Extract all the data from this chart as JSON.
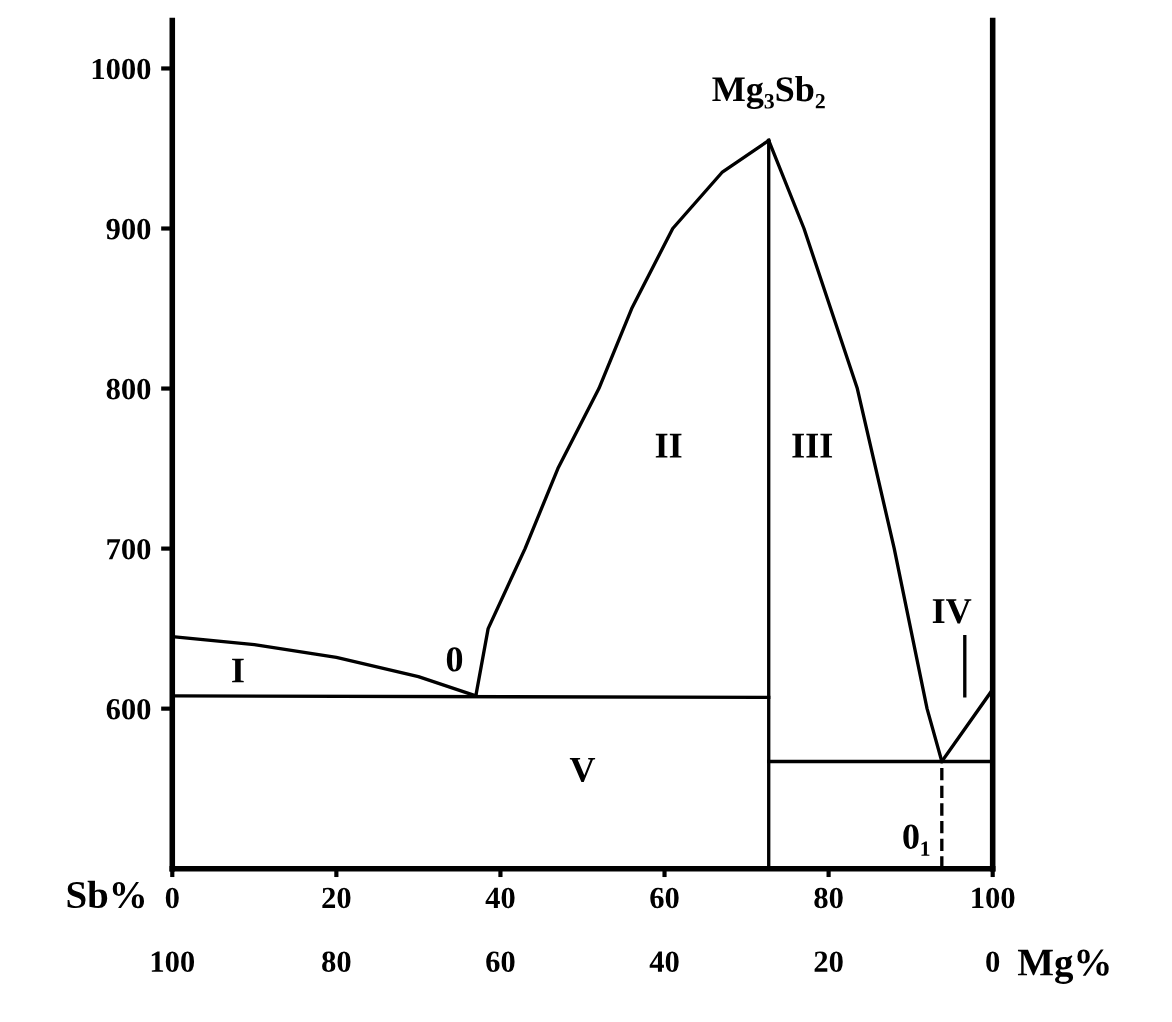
{
  "chart_data": {
    "type": "line",
    "xlabel": "Sb%",
    "x2label": "Mg%",
    "xlim": [
      0,
      100
    ],
    "xticks": [
      0,
      20,
      40,
      60,
      80,
      100
    ],
    "x2lim": [
      100,
      0
    ],
    "x2ticks": [
      100,
      80,
      60,
      40,
      20,
      0
    ],
    "ylim": [
      500,
      1030
    ],
    "yticks": [
      600,
      700,
      800,
      900,
      1000
    ],
    "grid": false,
    "legend": false,
    "marker": "none",
    "series": [
      {
        "color": "#000000",
        "x": [
          0,
          10,
          20,
          30,
          37
        ],
        "values": [
          645,
          640,
          632,
          620,
          608
        ]
      },
      {
        "color": "#000000",
        "x": [
          0,
          72.7
        ],
        "values": [
          608,
          607
        ]
      },
      {
        "color": "#000000",
        "x": [
          37,
          38.5,
          43,
          47,
          52,
          56,
          61,
          67,
          72.7
        ],
        "values": [
          608,
          650,
          700,
          750,
          800,
          850,
          900,
          935,
          955
        ]
      },
      {
        "color": "#000000",
        "x": [
          72.7,
          72.7
        ],
        "values": [
          500,
          955
        ]
      },
      {
        "color": "#000000",
        "x": [
          72.7,
          77,
          83.5,
          88,
          92,
          93.8
        ],
        "values": [
          955,
          900,
          800,
          700,
          600,
          567
        ]
      },
      {
        "color": "#000000",
        "x": [
          72.7,
          100
        ],
        "values": [
          567,
          567
        ]
      },
      {
        "color": "#000000",
        "x": [
          93.8,
          100
        ],
        "values": [
          567,
          612
        ]
      },
      {
        "color": "#000000",
        "x": [
          93.8,
          93.8
        ],
        "values": [
          500,
          567
        ],
        "line_style": "dashed"
      },
      {
        "color": "#000000",
        "x": [
          96.6,
          96.6
        ],
        "values": [
          645,
          608
        ]
      }
    ],
    "annotations": [
      "Mg₃Sb₂",
      "I",
      "II",
      "III",
      "IV",
      "V",
      "0",
      "0₁"
    ]
  }
}
